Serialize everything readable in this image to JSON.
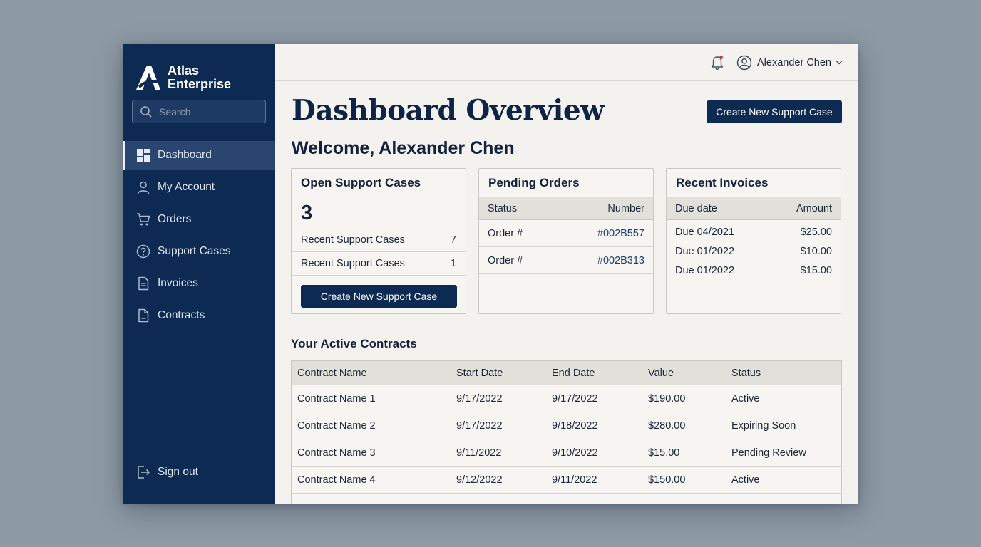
{
  "brand": {
    "line1": "Atlas",
    "line2": "Enterprise"
  },
  "search": {
    "placeholder": "Search"
  },
  "nav": {
    "items": [
      {
        "label": "Dashboard",
        "icon": "dashboard-icon",
        "active": true
      },
      {
        "label": "My Account",
        "icon": "user-icon"
      },
      {
        "label": "Orders",
        "icon": "cart-icon"
      },
      {
        "label": "Support Cases",
        "icon": "help-circle-icon"
      },
      {
        "label": "Invoices",
        "icon": "document-icon"
      },
      {
        "label": "Contracts",
        "icon": "contract-icon"
      }
    ],
    "signout": "Sign out"
  },
  "topbar": {
    "user_name": "Alexander Chen"
  },
  "page": {
    "title": "Dashboard Overview",
    "create_button": "Create New Support Case",
    "welcome": "Welcome, Alexander Chen"
  },
  "support_card": {
    "title": "Open Support Cases",
    "count": "3",
    "rows": [
      {
        "label": "Recent Support Cases",
        "value": "7"
      },
      {
        "label": "Recent Support Cases",
        "value": "1"
      }
    ],
    "button": "Create New Support Case"
  },
  "orders_card": {
    "title": "Pending Orders",
    "col_status": "Status",
    "col_number": "Number",
    "rows": [
      {
        "status": "Order #",
        "number": "#002B557"
      },
      {
        "status": "Order #",
        "number": "#002B313"
      }
    ]
  },
  "invoices_card": {
    "title": "Recent Invoices",
    "col_due": "Due date",
    "col_amount": "Amount",
    "rows": [
      {
        "due": "Due 04/2021",
        "amount": "$25.00"
      },
      {
        "due": "Due 01/2022",
        "amount": "$10.00"
      },
      {
        "due": "Due 01/2022",
        "amount": "$15.00"
      }
    ]
  },
  "contracts": {
    "title": "Your Active Contracts",
    "columns": [
      "Contract Name",
      "Start Date",
      "End Date",
      "Value",
      "Status"
    ],
    "rows": [
      [
        "Contract Name 1",
        "9/17/2022",
        "9/17/2022",
        "$190.00",
        "Active"
      ],
      [
        "Contract Name 2",
        "9/17/2022",
        "9/18/2022",
        "$280.00",
        "Expiring Soon"
      ],
      [
        "Contract Name 3",
        "9/11/2022",
        "9/10/2022",
        "$15.00",
        "Pending Review"
      ],
      [
        "Contract Name 4",
        "9/12/2022",
        "9/11/2022",
        "$150.00",
        "Active"
      ]
    ]
  },
  "colors": {
    "navy": "#0d2a52",
    "background": "#f3f2ee",
    "notification": "#d9352a"
  }
}
